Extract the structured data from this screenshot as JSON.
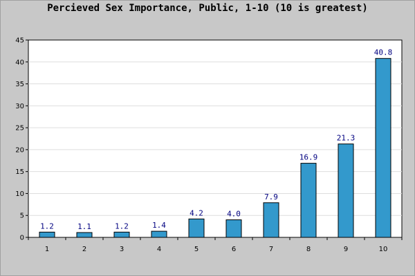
{
  "chart_data": {
    "type": "bar",
    "title": "Percieved Sex Importance, Public, 1-10 (10 is greatest)",
    "xlabel": "",
    "ylabel": "",
    "categories": [
      "1",
      "2",
      "3",
      "4",
      "5",
      "6",
      "7",
      "8",
      "9",
      "10"
    ],
    "values": [
      1.2,
      1.1,
      1.2,
      1.4,
      4.2,
      4.0,
      7.9,
      16.9,
      21.3,
      40.8
    ],
    "data_labels": [
      "1.2",
      "1.1",
      "1.2",
      "1.4",
      "4.2",
      "4.0",
      "7.9",
      "16.9",
      "21.3",
      "40.8"
    ],
    "ylim": [
      0,
      45
    ],
    "yticks": [
      0,
      5,
      10,
      15,
      20,
      25,
      30,
      35,
      40,
      45
    ],
    "grid": true,
    "bar_color": "#3399cc",
    "bar_edge_color": "#000000",
    "label_color": "#000080"
  }
}
